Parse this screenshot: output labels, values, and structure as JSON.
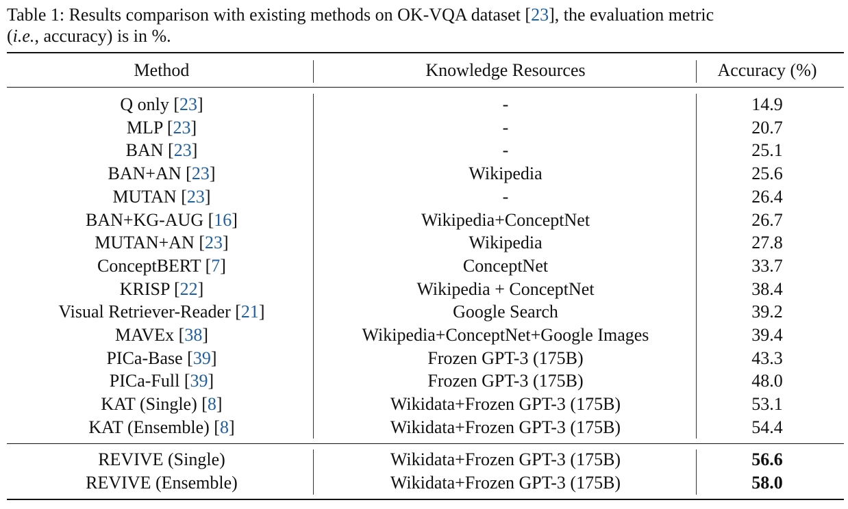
{
  "caption": {
    "label": "Table 1:",
    "text_before_cite": " Results comparison with existing methods on OK-VQA dataset [",
    "cite": "23",
    "text_after_cite": "], the evaluation metric",
    "line2_open": "(",
    "line2_italic": "i.e.",
    "line2_rest": ", accuracy) is in %."
  },
  "table": {
    "headers": {
      "method": "Method",
      "knowledge": "Knowledge Resources",
      "accuracy": "Accuracy (%)"
    },
    "rows": [
      {
        "method": "Q only",
        "cite": "23",
        "knowledge": "-",
        "accuracy": "14.9"
      },
      {
        "method": "MLP",
        "cite": "23",
        "knowledge": "-",
        "accuracy": "20.7"
      },
      {
        "method": "BAN",
        "cite": "23",
        "knowledge": "-",
        "accuracy": "25.1"
      },
      {
        "method": "BAN+AN",
        "cite": "23",
        "knowledge": "Wikipedia",
        "accuracy": "25.6"
      },
      {
        "method": "MUTAN",
        "cite": "23",
        "knowledge": "-",
        "accuracy": "26.4"
      },
      {
        "method": "BAN+KG-AUG",
        "cite": "16",
        "knowledge": "Wikipedia+ConceptNet",
        "accuracy": "26.7"
      },
      {
        "method": "MUTAN+AN",
        "cite": "23",
        "knowledge": "Wikipedia",
        "accuracy": "27.8"
      },
      {
        "method": "ConceptBERT",
        "cite": "7",
        "knowledge": "ConceptNet",
        "accuracy": "33.7"
      },
      {
        "method": "KRISP",
        "cite": "22",
        "knowledge": "Wikipedia + ConceptNet",
        "accuracy": "38.4"
      },
      {
        "method": "Visual Retriever-Reader",
        "cite": "21",
        "knowledge": "Google Search",
        "accuracy": "39.2"
      },
      {
        "method": "MAVEx",
        "cite": "38",
        "knowledge": "Wikipedia+ConceptNet+Google Images",
        "accuracy": "39.4"
      },
      {
        "method": "PICa-Base",
        "cite": "39",
        "knowledge": "Frozen GPT-3 (175B)",
        "accuracy": "43.3"
      },
      {
        "method": "PICa-Full",
        "cite": "39",
        "knowledge": "Frozen GPT-3 (175B)",
        "accuracy": "48.0"
      },
      {
        "method": "KAT (Single)",
        "cite": "8",
        "knowledge": "Wikidata+Frozen GPT-3 (175B)",
        "accuracy": "53.1"
      },
      {
        "method": "KAT (Ensemble)",
        "cite": "8",
        "knowledge": "Wikidata+Frozen GPT-3 (175B)",
        "accuracy": "54.4"
      }
    ],
    "ours": [
      {
        "method": "REVIVE (Single)",
        "knowledge": "Wikidata+Frozen GPT-3 (175B)",
        "accuracy": "56.6"
      },
      {
        "method": "REVIVE (Ensemble)",
        "knowledge": "Wikidata+Frozen GPT-3 (175B)",
        "accuracy": "58.0"
      }
    ]
  }
}
